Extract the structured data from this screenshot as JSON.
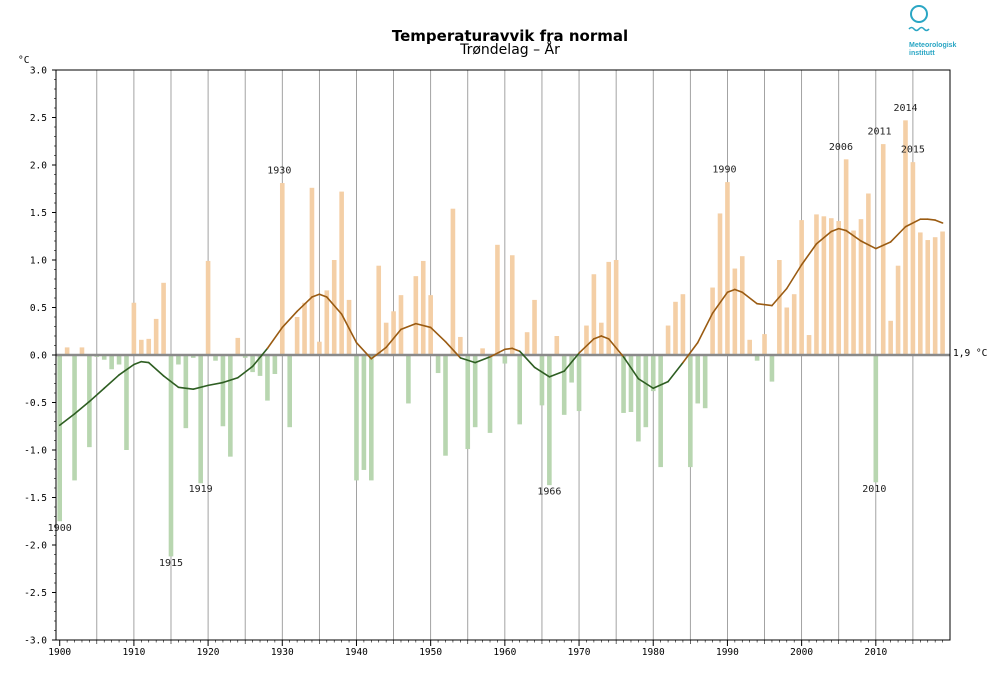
{
  "logo": {
    "line1": "Meteorologisk",
    "line2": "institutt",
    "color": "#2aa6c4"
  },
  "chart_data": {
    "type": "bar",
    "title": "Temperaturavvik fra normal",
    "subtitle": "Trøndelag – År",
    "ylabel": "°C",
    "reference_label": "1,9 °C",
    "ylim": [
      -3.0,
      3.0
    ],
    "xlim": [
      1899.5,
      2020.0
    ],
    "grid": true,
    "colors": {
      "positive": "#f4cfa6",
      "negative": "#b8d6b0",
      "smooth_positive": "#9a5b12",
      "smooth_negative": "#2e5e22",
      "zero_line": "#8a8a8a"
    },
    "y_ticks": [
      {
        "value": 3.0,
        "label": "3.0"
      },
      {
        "value": 2.5,
        "label": "2.5"
      },
      {
        "value": 2.0,
        "label": "2.0"
      },
      {
        "value": 1.5,
        "label": "1.5"
      },
      {
        "value": 1.0,
        "label": "1.0"
      },
      {
        "value": 0.5,
        "label": "0.5"
      },
      {
        "value": 0.0,
        "label": "0.0"
      },
      {
        "value": -0.5,
        "label": "-0.5"
      },
      {
        "value": -1.0,
        "label": "-1.0"
      },
      {
        "value": -1.5,
        "label": "-1.5"
      },
      {
        "value": -2.0,
        "label": "-2.0"
      },
      {
        "value": -2.5,
        "label": "-2.5"
      },
      {
        "value": -3.0,
        "label": "-3.0"
      }
    ],
    "x_ticks": [
      {
        "value": 1900,
        "label": "1900"
      },
      {
        "value": 1910,
        "label": "1910"
      },
      {
        "value": 1920,
        "label": "1920"
      },
      {
        "value": 1930,
        "label": "1930"
      },
      {
        "value": 1940,
        "label": "1940"
      },
      {
        "value": 1950,
        "label": "1950"
      },
      {
        "value": 1960,
        "label": "1960"
      },
      {
        "value": 1970,
        "label": "1970"
      },
      {
        "value": 1980,
        "label": "1980"
      },
      {
        "value": 1990,
        "label": "1990"
      },
      {
        "value": 2000,
        "label": "2000"
      },
      {
        "value": 2010,
        "label": "2010"
      }
    ],
    "years": [
      1900,
      1901,
      1902,
      1903,
      1904,
      1905,
      1906,
      1907,
      1908,
      1909,
      1910,
      1911,
      1912,
      1913,
      1914,
      1915,
      1916,
      1917,
      1918,
      1919,
      1920,
      1921,
      1922,
      1923,
      1924,
      1925,
      1926,
      1927,
      1928,
      1929,
      1930,
      1931,
      1932,
      1933,
      1934,
      1935,
      1936,
      1937,
      1938,
      1939,
      1940,
      1941,
      1942,
      1943,
      1944,
      1945,
      1946,
      1947,
      1948,
      1949,
      1950,
      1951,
      1952,
      1953,
      1954,
      1955,
      1956,
      1957,
      1958,
      1959,
      1960,
      1961,
      1962,
      1963,
      1964,
      1965,
      1966,
      1967,
      1968,
      1969,
      1970,
      1971,
      1972,
      1973,
      1974,
      1975,
      1976,
      1977,
      1978,
      1979,
      1980,
      1981,
      1982,
      1983,
      1984,
      1985,
      1986,
      1987,
      1988,
      1989,
      1990,
      1991,
      1992,
      1993,
      1994,
      1995,
      1996,
      1997,
      1998,
      1999,
      2000,
      2001,
      2002,
      2003,
      2004,
      2005,
      2006,
      2007,
      2008,
      2009,
      2010,
      2011,
      2012,
      2013,
      2014,
      2015,
      2016,
      2017,
      2018,
      2019
    ],
    "values": [
      -1.75,
      0.08,
      -1.32,
      0.08,
      -0.97,
      -0.02,
      -0.05,
      -0.15,
      -0.1,
      -1.0,
      0.55,
      0.16,
      0.17,
      0.38,
      0.76,
      -2.12,
      -0.1,
      -0.77,
      -0.03,
      -1.35,
      0.99,
      -0.06,
      -0.75,
      -1.07,
      0.18,
      -0.03,
      -0.18,
      -0.22,
      -0.48,
      -0.2,
      1.81,
      -0.76,
      0.4,
      0.55,
      1.76,
      0.14,
      0.68,
      1.0,
      1.72,
      0.58,
      -1.32,
      -1.21,
      -1.32,
      0.94,
      0.34,
      0.46,
      0.63,
      -0.51,
      0.83,
      0.99,
      0.63,
      -0.19,
      -1.06,
      1.54,
      0.19,
      -0.99,
      -0.76,
      0.07,
      -0.82,
      1.16,
      -0.09,
      1.05,
      -0.73,
      0.24,
      0.58,
      -0.53,
      -1.37,
      0.2,
      -0.63,
      -0.29,
      -0.59,
      0.31,
      0.85,
      0.34,
      0.98,
      1.0,
      -0.61,
      -0.6,
      -0.91,
      -0.76,
      -0.38,
      -1.18,
      0.31,
      0.56,
      0.64,
      -1.18,
      -0.51,
      -0.56,
      0.71,
      1.49,
      1.82,
      0.91,
      1.04,
      0.16,
      -0.06,
      0.22,
      -0.28,
      1.0,
      0.5,
      0.64,
      1.42,
      0.21,
      1.48,
      1.46,
      1.44,
      1.41,
      2.06,
      1.31,
      1.43,
      1.7,
      -1.34,
      2.22,
      0.36,
      0.94,
      2.47,
      2.03,
      1.29,
      1.21,
      1.24,
      1.3
    ],
    "smoothed": [
      [
        1900,
        -0.74
      ],
      [
        1902,
        -0.62
      ],
      [
        1904,
        -0.49
      ],
      [
        1906,
        -0.35
      ],
      [
        1908,
        -0.21
      ],
      [
        1910,
        -0.1
      ],
      [
        1911,
        -0.07
      ],
      [
        1912,
        -0.08
      ],
      [
        1914,
        -0.22
      ],
      [
        1916,
        -0.34
      ],
      [
        1918,
        -0.36
      ],
      [
        1920,
        -0.32
      ],
      [
        1922,
        -0.29
      ],
      [
        1924,
        -0.24
      ],
      [
        1926,
        -0.12
      ],
      [
        1928,
        0.07
      ],
      [
        1930,
        0.29
      ],
      [
        1932,
        0.46
      ],
      [
        1934,
        0.61
      ],
      [
        1935,
        0.64
      ],
      [
        1936,
        0.61
      ],
      [
        1938,
        0.43
      ],
      [
        1940,
        0.13
      ],
      [
        1942,
        -0.04
      ],
      [
        1944,
        0.08
      ],
      [
        1946,
        0.27
      ],
      [
        1948,
        0.33
      ],
      [
        1950,
        0.29
      ],
      [
        1952,
        0.14
      ],
      [
        1954,
        -0.03
      ],
      [
        1956,
        -0.08
      ],
      [
        1958,
        -0.02
      ],
      [
        1960,
        0.06
      ],
      [
        1961,
        0.07
      ],
      [
        1962,
        0.04
      ],
      [
        1964,
        -0.13
      ],
      [
        1966,
        -0.23
      ],
      [
        1968,
        -0.17
      ],
      [
        1970,
        0.02
      ],
      [
        1972,
        0.17
      ],
      [
        1973,
        0.2
      ],
      [
        1974,
        0.17
      ],
      [
        1976,
        -0.02
      ],
      [
        1978,
        -0.25
      ],
      [
        1980,
        -0.35
      ],
      [
        1982,
        -0.28
      ],
      [
        1984,
        -0.08
      ],
      [
        1986,
        0.13
      ],
      [
        1988,
        0.44
      ],
      [
        1990,
        0.66
      ],
      [
        1991,
        0.69
      ],
      [
        1992,
        0.66
      ],
      [
        1994,
        0.54
      ],
      [
        1996,
        0.52
      ],
      [
        1998,
        0.7
      ],
      [
        2000,
        0.95
      ],
      [
        2002,
        1.17
      ],
      [
        2004,
        1.3
      ],
      [
        2005,
        1.33
      ],
      [
        2006,
        1.31
      ],
      [
        2008,
        1.2
      ],
      [
        2010,
        1.12
      ],
      [
        2012,
        1.19
      ],
      [
        2014,
        1.35
      ],
      [
        2016,
        1.43
      ],
      [
        2017,
        1.43
      ],
      [
        2018,
        1.42
      ],
      [
        2019,
        1.39
      ]
    ],
    "annotations": [
      {
        "label": "1900",
        "x": 1900,
        "y": -1.85
      },
      {
        "label": "1915",
        "x": 1915,
        "y": -2.22
      },
      {
        "label": "1919",
        "x": 1919,
        "y": -1.44
      },
      {
        "label": "1930",
        "x": 1929.6,
        "y": 1.91
      },
      {
        "label": "1966",
        "x": 1966,
        "y": -1.47
      },
      {
        "label": "1990",
        "x": 1989.6,
        "y": 1.92
      },
      {
        "label": "2006",
        "x": 2005.3,
        "y": 2.16
      },
      {
        "label": "2010",
        "x": 2009.8,
        "y": -1.44
      },
      {
        "label": "2011",
        "x": 2010.5,
        "y": 2.32
      },
      {
        "label": "2014",
        "x": 2014,
        "y": 2.57
      },
      {
        "label": "2015",
        "x": 2015,
        "y": 2.13
      }
    ]
  }
}
